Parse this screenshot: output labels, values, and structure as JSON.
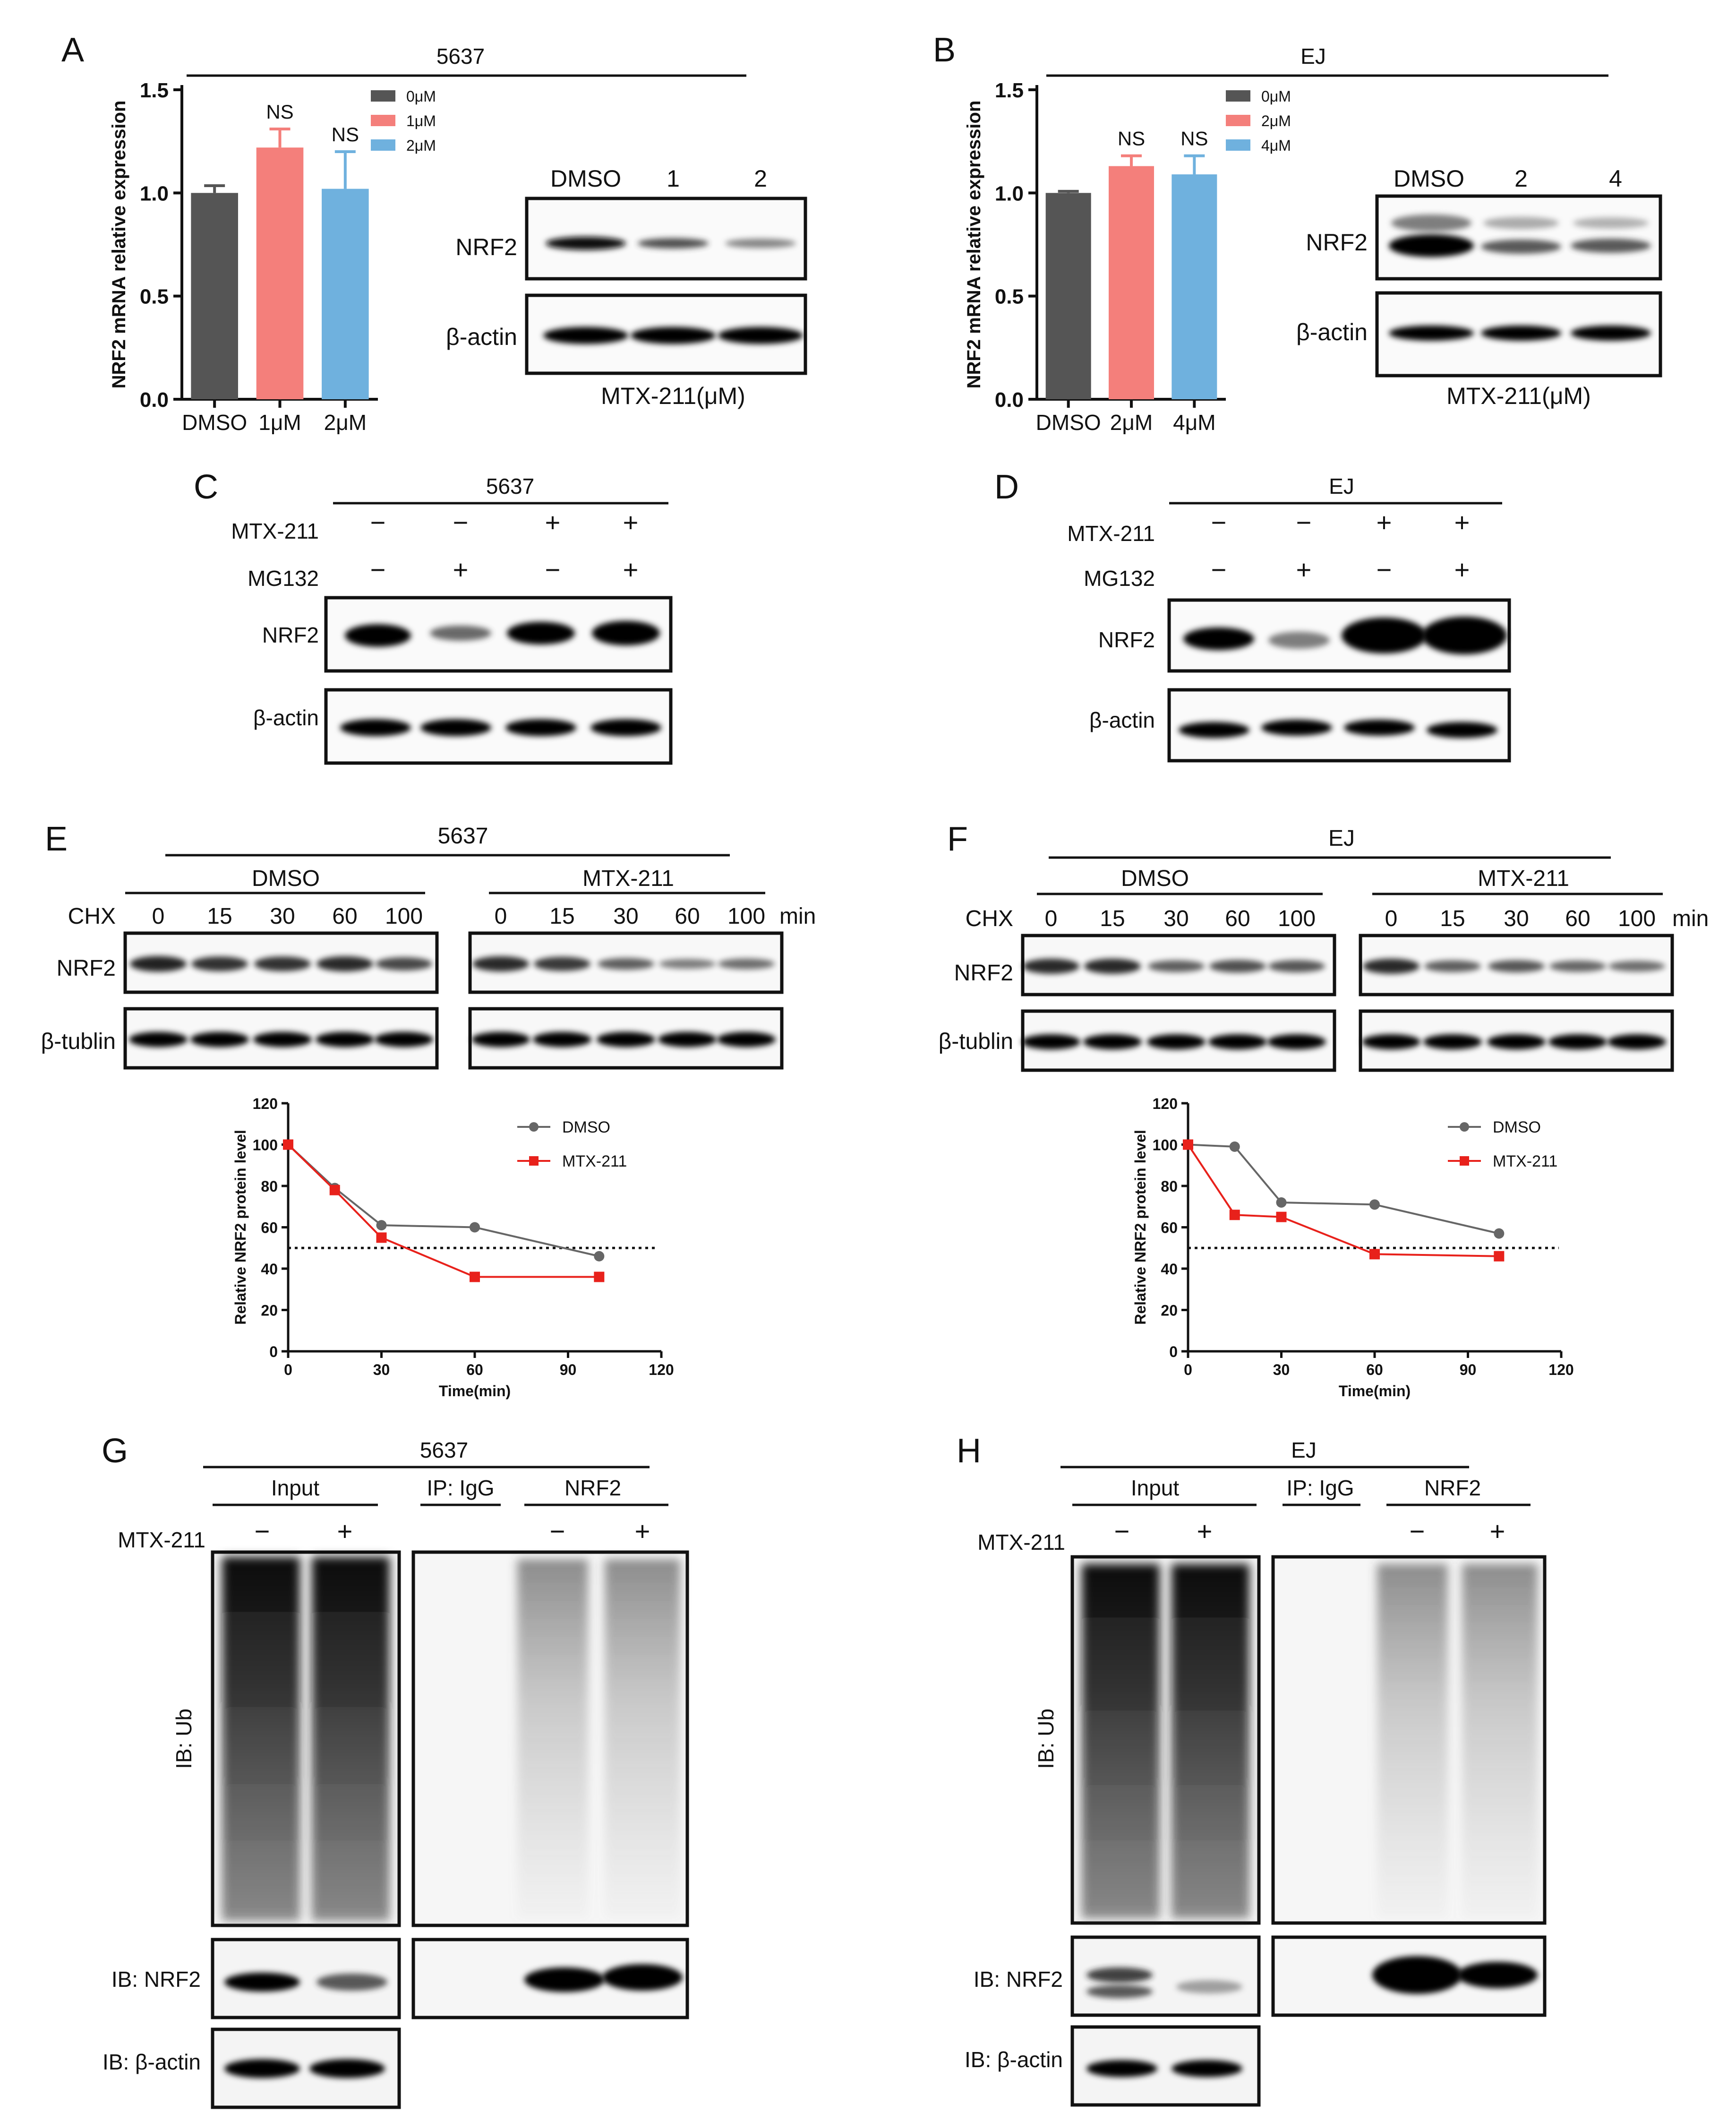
{
  "panels": {
    "A": {
      "letter": "A",
      "cell": "5637",
      "chart_data": {
        "type": "bar",
        "categories": [
          "DMSO",
          "1μM",
          "2μM"
        ],
        "values": [
          1.0,
          1.22,
          1.02
        ],
        "errors": [
          0.035,
          0.09,
          0.18
        ],
        "colors": [
          "#555555",
          "#f47f7b",
          "#6fb1de"
        ],
        "legend": [
          "0μM",
          "1μM",
          "2μM"
        ],
        "annotations": [
          "",
          "NS",
          "NS"
        ],
        "ylabel": "NRF2 mRNA relative expression",
        "ylim": [
          0,
          1.5
        ],
        "yticks": [
          "0.0",
          "0.5",
          "1.0",
          "1.5"
        ]
      },
      "blot": {
        "lanes": [
          "DMSO",
          "1",
          "2"
        ],
        "rows": [
          "NRF2",
          "β-actin"
        ],
        "xlabel": "MTX-211(μM)"
      }
    },
    "B": {
      "letter": "B",
      "cell": "EJ",
      "chart_data": {
        "type": "bar",
        "categories": [
          "DMSO",
          "2μM",
          "4μM"
        ],
        "values": [
          1.0,
          1.13,
          1.09
        ],
        "errors": [
          0.008,
          0.05,
          0.09
        ],
        "colors": [
          "#555555",
          "#f47f7b",
          "#6fb1de"
        ],
        "legend": [
          "0μM",
          "2μM",
          "4μM"
        ],
        "annotations": [
          "",
          "NS",
          "NS"
        ],
        "ylabel": "NRF2 mRNA relative expression",
        "ylim": [
          0,
          1.5
        ],
        "yticks": [
          "0.0",
          "0.5",
          "1.0",
          "1.5"
        ]
      },
      "blot": {
        "lanes": [
          "DMSO",
          "2",
          "4"
        ],
        "rows": [
          "NRF2",
          "β-actin"
        ],
        "xlabel": "MTX-211(μM)"
      }
    },
    "C": {
      "letter": "C",
      "cell": "5637",
      "treatments": [
        {
          "name": "MTX-211",
          "signs": [
            "−",
            "−",
            "+",
            "+"
          ]
        },
        {
          "name": "MG132",
          "signs": [
            "−",
            "+",
            "−",
            "+"
          ]
        }
      ],
      "rows": [
        "NRF2",
        "β-actin"
      ]
    },
    "D": {
      "letter": "D",
      "cell": "EJ",
      "treatments": [
        {
          "name": "MTX-211",
          "signs": [
            "−",
            "−",
            "+",
            "+"
          ]
        },
        {
          "name": "MG132",
          "signs": [
            "−",
            "+",
            "−",
            "+"
          ]
        }
      ],
      "rows": [
        "NRF2",
        "β-actin"
      ]
    },
    "E": {
      "letter": "E",
      "cell": "5637",
      "groups": [
        "DMSO",
        "MTX-211"
      ],
      "chx_label": "CHX",
      "times": [
        "0",
        "15",
        "30",
        "60",
        "100"
      ],
      "unit": "min",
      "rows": [
        "NRF2",
        "β-tublin"
      ],
      "chart_data": {
        "type": "line",
        "x": [
          0,
          15,
          30,
          60,
          100
        ],
        "series": [
          {
            "name": "DMSO",
            "values": [
              100,
              79,
              61,
              60,
              46
            ],
            "color": "#666666",
            "marker": "circle"
          },
          {
            "name": "MTX-211",
            "values": [
              100,
              78,
              55,
              36,
              36
            ],
            "color": "#e8211b",
            "marker": "square"
          }
        ],
        "reference_line": 50,
        "xlabel": "Time(min)",
        "ylabel": "Relative NRF2 protein  level",
        "xlim": [
          0,
          120
        ],
        "ylim": [
          0,
          120
        ],
        "xticks": [
          0,
          30,
          60,
          90,
          120
        ],
        "yticks": [
          0,
          20,
          40,
          60,
          80,
          100,
          120
        ]
      }
    },
    "F": {
      "letter": "F",
      "cell": "EJ",
      "groups": [
        "DMSO",
        "MTX-211"
      ],
      "chx_label": "CHX",
      "times": [
        "0",
        "15",
        "30",
        "60",
        "100"
      ],
      "unit": "min",
      "rows": [
        "NRF2",
        "β-tublin"
      ],
      "chart_data": {
        "type": "line",
        "x": [
          0,
          15,
          30,
          60,
          100
        ],
        "series": [
          {
            "name": "DMSO",
            "values": [
              100,
              99,
              72,
              71,
              57
            ],
            "color": "#666666",
            "marker": "circle"
          },
          {
            "name": "MTX-211",
            "values": [
              100,
              66,
              65,
              47,
              46
            ],
            "color": "#e8211b",
            "marker": "square"
          }
        ],
        "reference_line": 50,
        "xlabel": "Time(min)",
        "ylabel": "Relative NRF2 protein  level",
        "xlim": [
          0,
          120
        ],
        "ylim": [
          0,
          120
        ],
        "xticks": [
          0,
          30,
          60,
          90,
          120
        ],
        "yticks": [
          0,
          20,
          40,
          60,
          80,
          100,
          120
        ]
      }
    },
    "G": {
      "letter": "G",
      "cell": "5637",
      "groups": [
        "Input",
        "IP: IgG",
        "NRF2"
      ],
      "treatment": "MTX-211",
      "signs": [
        "−",
        "+",
        "−",
        "+"
      ],
      "rows": [
        "IB: Ub",
        "IB: NRF2",
        "IB: β-actin"
      ]
    },
    "H": {
      "letter": "H",
      "cell": "EJ",
      "groups": [
        "Input",
        "IP: IgG",
        "NRF2"
      ],
      "treatment": "MTX-211",
      "signs": [
        "−",
        "+",
        "−",
        "+"
      ],
      "rows": [
        "IB: Ub",
        "IB: NRF2",
        "IB: β-actin"
      ]
    }
  }
}
